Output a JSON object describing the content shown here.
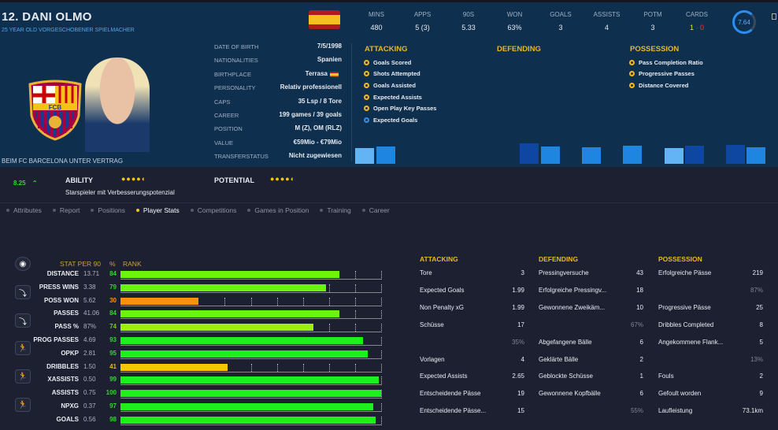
{
  "player": {
    "name": "12. DANI OLMO",
    "subtitle": "25 YEAR OLD VORGESCHOBENER SPIELMACHER",
    "contract": "BEIM FC BARCELONA UNTER VERTRAG",
    "rating": "7.64",
    "crest_text": "FCB"
  },
  "summary": [
    {
      "label": "MINS",
      "value": "480"
    },
    {
      "label": "APPS",
      "value": "5 (3)"
    },
    {
      "label": "90S",
      "value": "5.33"
    },
    {
      "label": "WON",
      "value": "63%"
    },
    {
      "label": "GOALS",
      "value": "3"
    },
    {
      "label": "ASSISTS",
      "value": "4"
    },
    {
      "label": "POTM",
      "value": "3"
    }
  ],
  "cards": {
    "label": "CARDS",
    "yellow": "1",
    "red": "0"
  },
  "info": [
    {
      "label": "DATE OF BIRTH",
      "value": "7/5/1998"
    },
    {
      "label": "NATIONALITIES",
      "value": "Spanien"
    },
    {
      "label": "BIRTHPLACE",
      "value": "Terrasa"
    },
    {
      "label": "PERSONALITY",
      "value": "Relativ professionell"
    },
    {
      "label": "CAPS",
      "value": "35 Lsp / 8 Tore"
    },
    {
      "label": "CAREER",
      "value": "199 games /  39 goals"
    },
    {
      "label": "POSITION",
      "value": "M (Z), OM (RLZ)"
    },
    {
      "label": "VALUE",
      "value": "€59Mio - €79Mio"
    },
    {
      "label": "TRANSFERSTATUS",
      "value": "Nicht zugewiesen"
    }
  ],
  "highlights": {
    "attacking": {
      "title": "ATTACKING",
      "items": [
        "Goals Scored",
        "Shots Attempted",
        "Goals Assisted",
        "Expected Assists",
        "Open Play Key Passes",
        "Expected Goals"
      ]
    },
    "defending": {
      "title": "DEFENDING"
    },
    "possession": {
      "title": "POSSESSION",
      "items": [
        "Pass Completion Ratio",
        "Progressive Passes",
        "Distance Covered"
      ]
    }
  },
  "ability": {
    "score": "8.25",
    "label": "ABILITY",
    "stars": "●●●●◐",
    "description": "Starspieler mit Verbesserungspotenzial",
    "potential_label": "POTENTIAL",
    "potential_stars": "●●●●◐"
  },
  "tabs": [
    "Attributes",
    "Report",
    "Positions",
    "Player Stats",
    "Competitions",
    "Games in Position",
    "Training",
    "Career"
  ],
  "active_tab": "Player Stats",
  "performance": {
    "headers": {
      "stat": "STAT PER 90",
      "pct": "%",
      "rank": "RANK"
    },
    "rows": [
      {
        "label": "DISTANCE",
        "value": "13.71",
        "pct": 84
      },
      {
        "label": "PRESS WINS",
        "value": "3.38",
        "pct": 79
      },
      {
        "label": "POSS WON",
        "value": "5.62",
        "pct": 30
      },
      {
        "label": "PASSES",
        "value": "41.06",
        "pct": 84
      },
      {
        "label": "PASS %",
        "value": "87%",
        "pct": 74
      },
      {
        "label": "PROG PASSES",
        "value": "4.69",
        "pct": 93
      },
      {
        "label": "OPKP",
        "value": "2.81",
        "pct": 95
      },
      {
        "label": "DRIBBLES",
        "value": "1.50",
        "pct": 41
      },
      {
        "label": "XASSISTS",
        "value": "0.50",
        "pct": 99
      },
      {
        "label": "ASSISTS",
        "value": "0.75",
        "pct": 100
      },
      {
        "label": "NPXG",
        "value": "0.37",
        "pct": 97
      },
      {
        "label": "GOALS",
        "value": "0.56",
        "pct": 98
      }
    ]
  },
  "tables": [
    {
      "title": "ATTACKING",
      "rows": [
        [
          "Tore",
          "3"
        ],
        [
          "Expected Goals",
          "1.99"
        ],
        [
          "Non Penalty xG",
          "1.99"
        ],
        [
          "Schüsse",
          "17"
        ],
        [
          "",
          "35%"
        ],
        [
          "Vorlagen",
          "4"
        ],
        [
          "Expected Assists",
          "2.65"
        ],
        [
          "Entscheidende Pässe",
          "19"
        ],
        [
          "Entscheidende Pässe...",
          "15"
        ]
      ]
    },
    {
      "title": "DEFENDING",
      "rows": [
        [
          "Pressingversuche",
          "43"
        ],
        [
          "Erfolgreiche Pressingv...",
          "18"
        ],
        [
          "Gewonnene Zweikäm...",
          "10"
        ],
        [
          "",
          "67%"
        ],
        [
          "Abgefangene Bälle",
          "6"
        ],
        [
          "Geklärte Bälle",
          "2"
        ],
        [
          "Geblockte Schüsse",
          "1"
        ],
        [
          "Gewonnene Kopfbälle",
          "6"
        ],
        [
          "",
          "55%"
        ]
      ]
    },
    {
      "title": "POSSESSION",
      "rows": [
        [
          "Erfolgreiche Pässe",
          "219"
        ],
        [
          "",
          "87%"
        ],
        [
          "Progressive Pässe",
          "25"
        ],
        [
          "Dribbles Completed",
          "8"
        ],
        [
          "Angekommene Flank...",
          "5"
        ],
        [
          "",
          "13%"
        ],
        [
          "Fouls",
          "2"
        ],
        [
          "Gefoult worden",
          "9"
        ],
        [
          "Laufleistung",
          "73.1km"
        ]
      ]
    }
  ]
}
